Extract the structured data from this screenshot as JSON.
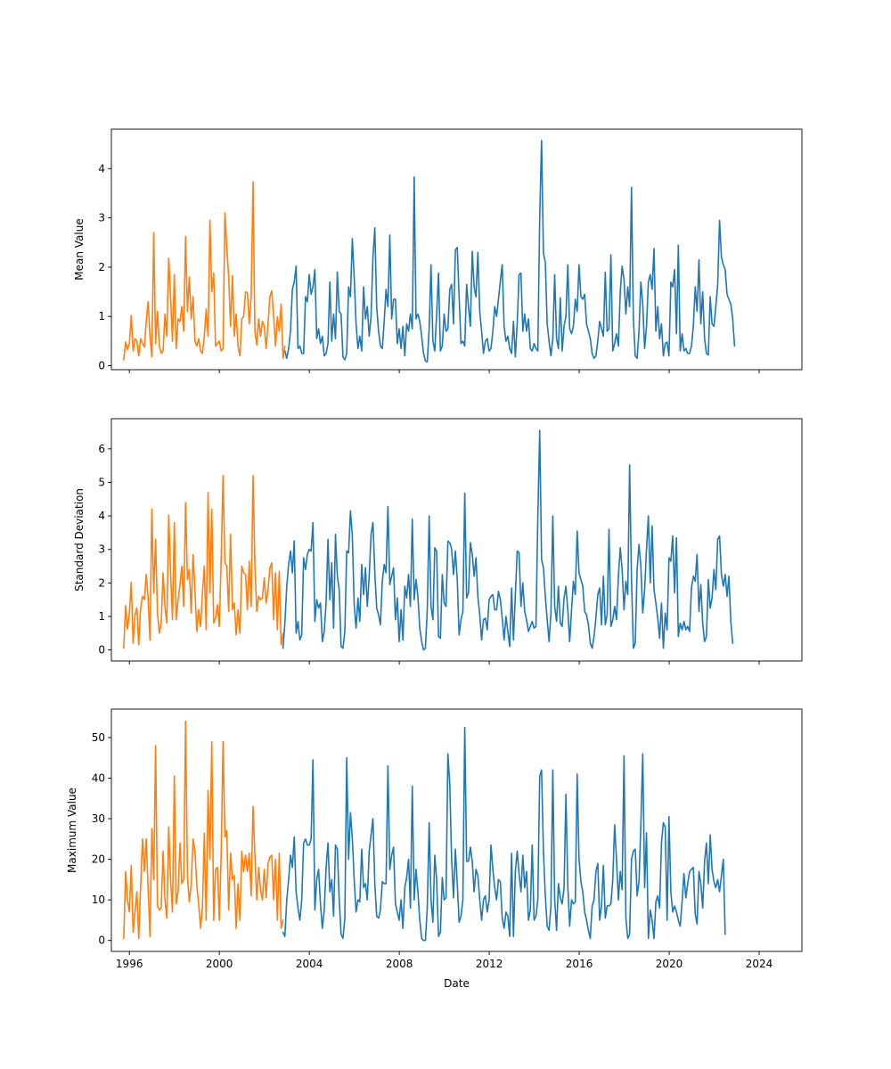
{
  "chart_data": [
    {
      "type": "line",
      "ylabel": "Mean Value",
      "xlim": [
        1995.2,
        2025.9
      ],
      "ylim": [
        -0.08,
        4.8
      ],
      "yticks": [
        0,
        1,
        2,
        3,
        4
      ],
      "grid": false,
      "x_start": 1995.75,
      "x_step": 0.0833,
      "series": [
        {
          "color": "#ff7f0e",
          "values": [
            0.12,
            0.48,
            0.33,
            0.45,
            1.02,
            0.3,
            0.55,
            0.5,
            0.2,
            0.55,
            0.45,
            0.38,
            0.9,
            1.3,
            0.6,
            0.18,
            2.7,
            0.45,
            1.1,
            0.4,
            0.25,
            0.3,
            1.05,
            0.6,
            2.18,
            1.4,
            0.5,
            1.85,
            0.35,
            0.95,
            0.9,
            1.2,
            0.7,
            2.62,
            1.1,
            1.8,
            0.95,
            1.4,
            0.5,
            0.4,
            0.55,
            0.3,
            0.25,
            0.6,
            1.15,
            0.6,
            2.95,
            1.5,
            1.88,
            0.4,
            0.45,
            0.5,
            0.3,
            0.35,
            3.1,
            2.4,
            1.8,
            0.8,
            1.83,
            0.6,
            1.05,
            0.4,
            0.2,
            0.95,
            1.0,
            1.5,
            1.48,
            0.85,
            1.4,
            3.73,
            0.7,
            0.42,
            0.95,
            0.6,
            0.9,
            0.8,
            0.35,
            0.85,
            1.4,
            1.52,
            1.0,
            0.4,
            1.0,
            0.7,
            1.25,
            0.15,
            0.4
          ]
        },
        {
          "color": "#1f77b4",
          "values": [
            0.3,
            0.15,
            0.35,
            0.7,
            1.55,
            1.7,
            2.02,
            0.35,
            0.4,
            0.25,
            0.25,
            1.4,
            1.3,
            1.85,
            1.45,
            1.6,
            1.95,
            0.55,
            0.75,
            0.45,
            0.6,
            0.2,
            0.25,
            0.45,
            1.7,
            0.5,
            1.05,
            0.55,
            1.9,
            1.1,
            1.05,
            0.18,
            0.12,
            0.25,
            1.6,
            1.4,
            2.58,
            1.8,
            0.85,
            0.35,
            0.6,
            0.3,
            1.6,
            0.95,
            1.2,
            0.6,
            1.0,
            2.2,
            2.8,
            1.2,
            0.7,
            0.4,
            0.35,
            0.9,
            1.55,
            1.2,
            2.65,
            0.95,
            1.35,
            1.35,
            0.45,
            0.75,
            0.35,
            0.8,
            0.2,
            0.85,
            0.7,
            1.05,
            0.75,
            3.83,
            0.95,
            1.05,
            0.9,
            0.6,
            0.25,
            0.1,
            0.08,
            0.75,
            2.05,
            0.5,
            0.3,
            1.05,
            1.88,
            0.3,
            0.4,
            1.05,
            0.7,
            0.75,
            1.55,
            1.65,
            0.85,
            2.35,
            2.4,
            1.4,
            0.45,
            0.5,
            0.4,
            1.65,
            1.2,
            0.8,
            2.32,
            1.6,
            1.4,
            2.3,
            1.1,
            0.7,
            0.25,
            0.5,
            0.55,
            0.3,
            0.35,
            0.7,
            1.2,
            1.0,
            1.35,
            1.72,
            2.05,
            0.8,
            0.5,
            0.6,
            0.35,
            0.25,
            0.9,
            0.18,
            0.85,
            1.85,
            1.88,
            0.7,
            1.05,
            0.7,
            0.95,
            0.35,
            0.3,
            0.45,
            0.35,
            0.3,
            3.0,
            4.57,
            2.28,
            2.1,
            0.85,
            0.5,
            0.2,
            0.55,
            1.85,
            0.55,
            0.35,
            1.38,
            0.3,
            0.8,
            1.0,
            2.05,
            0.75,
            0.65,
            0.8,
            1.35,
            1.1,
            2.05,
            1.4,
            1.35,
            1.45,
            0.85,
            0.7,
            0.55,
            0.25,
            0.15,
            0.2,
            0.5,
            0.9,
            0.75,
            0.6,
            1.9,
            0.7,
            0.75,
            2.25,
            0.3,
            0.45,
            0.65,
            0.4,
            1.5,
            2.02,
            1.75,
            1.05,
            1.6,
            1.2,
            3.62,
            0.95,
            0.2,
            0.15,
            0.7,
            1.7,
            1.25,
            0.35,
            0.8,
            1.7,
            1.85,
            1.55,
            2.38,
            0.7,
            1.2,
            0.55,
            0.85,
            0.2,
            0.45,
            0.48,
            0.2,
            1.7,
            1.6,
            1.95,
            0.65,
            2.45,
            0.3,
            0.65,
            0.3,
            0.35,
            0.25,
            0.25,
            0.4,
            0.8,
            1.6,
            1.1,
            2.15,
            0.85,
            1.5,
            0.55,
            0.25,
            0.22,
            1.4,
            0.85,
            0.8,
            1.2,
            1.65,
            2.95,
            2.2,
            2.05,
            1.95,
            1.45,
            1.35,
            1.25,
            0.95,
            0.4
          ]
        }
      ]
    },
    {
      "type": "line",
      "ylabel": "Standard Deviation",
      "xlim": [
        1995.2,
        2025.9
      ],
      "ylim": [
        -0.33,
        6.9
      ],
      "yticks": [
        0,
        1,
        2,
        3,
        4,
        5,
        6
      ],
      "grid": false,
      "x_start": 1995.75,
      "x_step": 0.0833,
      "series": [
        {
          "color": "#ff7f0e",
          "values": [
            0.05,
            1.32,
            0.62,
            1.1,
            2.02,
            0.2,
            1.05,
            1.25,
            0.15,
            1.25,
            1.6,
            1.5,
            2.25,
            1.55,
            0.3,
            4.2,
            1.7,
            3.3,
            1.1,
            0.5,
            0.8,
            2.3,
            1.3,
            0.8,
            4.02,
            2.3,
            0.9,
            3.8,
            0.9,
            1.5,
            1.95,
            2.5,
            1.3,
            4.4,
            2.1,
            2.4,
            1.1,
            2.85,
            1.8,
            0.55,
            1.2,
            0.7,
            1.7,
            2.5,
            0.6,
            4.7,
            1.7,
            4.2,
            0.8,
            0.95,
            1.35,
            0.7,
            2.7,
            5.2,
            2.6,
            2.5,
            1.15,
            3.45,
            1.2,
            1.4,
            0.45,
            1.2,
            0.5,
            2.5,
            2.3,
            2.25,
            1.2,
            2.65,
            1.3,
            5.2,
            2.55,
            1.15,
            1.6,
            1.5,
            1.55,
            2.15,
            1.4,
            1.8,
            2.45,
            2.6,
            0.9,
            2.3,
            0.6,
            2.35,
            0.15,
            0.5
          ]
        },
        {
          "color": "#1f77b4",
          "values": [
            0.05,
            0.8,
            1.9,
            2.55,
            2.95,
            2.3,
            3.25,
            0.5,
            0.85,
            0.3,
            0.45,
            2.75,
            2.4,
            2.85,
            3.0,
            2.95,
            3.8,
            0.85,
            1.5,
            1.25,
            1.4,
            0.25,
            0.55,
            1.4,
            3.3,
            1.5,
            2.6,
            0.65,
            3.45,
            2.2,
            1.8,
            0.1,
            0.05,
            0.55,
            2.95,
            2.9,
            4.15,
            3.4,
            1.35,
            0.65,
            1.55,
            0.85,
            2.55,
            1.65,
            2.45,
            1.3,
            2.2,
            3.45,
            3.8,
            2.3,
            1.25,
            1.05,
            0.75,
            2.05,
            2.55,
            2.3,
            4.28,
            1.95,
            2.2,
            2.45,
            0.9,
            1.55,
            0.25,
            1.2,
            0.3,
            1.9,
            1.55,
            2.25,
            1.3,
            3.9,
            1.5,
            2.1,
            1.6,
            0.65,
            0.25,
            0.0,
            0.05,
            1.2,
            4.0,
            1.3,
            0.9,
            3.05,
            2.95,
            0.4,
            0.35,
            2.25,
            1.4,
            1.3,
            3.25,
            3.2,
            3.0,
            2.25,
            2.95,
            2.1,
            0.45,
            0.9,
            1.15,
            4.68,
            1.55,
            1.7,
            3.2,
            2.85,
            2.2,
            2.75,
            1.6,
            1.05,
            0.3,
            0.9,
            0.95,
            0.6,
            1.5,
            1.6,
            1.65,
            1.2,
            1.2,
            1.75,
            1.5,
            0.95,
            0.3,
            1.0,
            0.55,
            0.1,
            1.85,
            0.3,
            1.65,
            2.95,
            2.9,
            1.3,
            2.0,
            1.15,
            0.9,
            0.55,
            0.7,
            0.85,
            0.65,
            0.7,
            3.95,
            6.55,
            2.7,
            2.45,
            1.6,
            0.9,
            0.25,
            1.1,
            4.0,
            1.3,
            0.85,
            1.9,
            0.8,
            0.7,
            1.55,
            1.9,
            1.2,
            0.25,
            1.2,
            2.05,
            1.65,
            3.55,
            2.3,
            2.1,
            1.9,
            1.15,
            1.05,
            0.75,
            0.2,
            0.05,
            0.4,
            0.95,
            1.65,
            1.85,
            0.75,
            2.2,
            0.75,
            1.05,
            3.6,
            0.7,
            0.9,
            1.3,
            0.9,
            2.2,
            3.05,
            2.4,
            1.2,
            2.05,
            1.65,
            5.52,
            2.1,
            0.05,
            0.2,
            2.4,
            3.15,
            2.5,
            1.1,
            1.8,
            3.0,
            4.0,
            2.0,
            3.7,
            1.8,
            1.4,
            0.95,
            0.35,
            1.4,
            0.05,
            1.1,
            0.6,
            2.75,
            2.65,
            3.4,
            1.7,
            3.35,
            0.4,
            0.8,
            0.6,
            0.85,
            0.6,
            0.7,
            0.55,
            1.85,
            2.2,
            2.05,
            2.85,
            1.15,
            1.95,
            0.8,
            0.25,
            0.4,
            2.1,
            1.25,
            1.55,
            2.4,
            1.8,
            3.3,
            3.4,
            2.25,
            1.9,
            2.25,
            1.6,
            2.2,
            0.85,
            0.2
          ]
        }
      ]
    },
    {
      "type": "line",
      "xlabel": "Date",
      "ylabel": "Maximum Value",
      "xlim": [
        1995.2,
        2025.9
      ],
      "ylim": [
        -2.7,
        57.0
      ],
      "yticks": [
        0,
        10,
        20,
        30,
        40,
        50
      ],
      "xticks": [
        1996,
        2000,
        2004,
        2008,
        2012,
        2016,
        2020,
        2024
      ],
      "grid": false,
      "x_start": 1995.75,
      "x_step": 0.0833,
      "series": [
        {
          "color": "#ff7f0e",
          "values": [
            0.5,
            17.0,
            10.0,
            7.0,
            18.5,
            2.0,
            7.0,
            12.0,
            0.5,
            13.0,
            25.0,
            17.0,
            25.0,
            13.0,
            1.0,
            27.5,
            15.0,
            48.0,
            8.5,
            7.5,
            8.0,
            22.0,
            10.0,
            5.5,
            28.0,
            15.0,
            7.0,
            40.5,
            9.0,
            12.0,
            24.0,
            14.0,
            15.0,
            54.0,
            16.0,
            9.5,
            14.0,
            25.0,
            22.0,
            13.5,
            9.0,
            3.0,
            8.0,
            26.5,
            5.0,
            37.0,
            20.0,
            49.0,
            5.0,
            17.5,
            18.0,
            5.0,
            21.0,
            49.0,
            25.5,
            27.0,
            7.5,
            21.5,
            15.0,
            16.0,
            3.0,
            14.0,
            5.0,
            22.0,
            17.0,
            21.0,
            17.0,
            21.5,
            11.0,
            33.0,
            21.0,
            10.0,
            18.0,
            12.5,
            10.0,
            17.5,
            10.5,
            19.0,
            20.5,
            21.0,
            10.0,
            20.0,
            5.0,
            21.5,
            3.0,
            5.0
          ]
        },
        {
          "color": "#1f77b4",
          "values": [
            2.0,
            1.0,
            10.0,
            15.0,
            21.0,
            18.0,
            25.5,
            12.0,
            8.0,
            5.0,
            10.0,
            24.0,
            25.0,
            23.5,
            23.5,
            25.0,
            44.5,
            7.5,
            15.0,
            17.5,
            9.0,
            3.0,
            7.5,
            18.0,
            24.0,
            12.0,
            15.0,
            6.0,
            23.5,
            22.5,
            10.0,
            1.5,
            0.5,
            5.5,
            45.0,
            20.0,
            31.5,
            25.0,
            15.0,
            7.0,
            10.0,
            9.5,
            22.5,
            13.0,
            14.0,
            10.0,
            22.0,
            26.0,
            30.0,
            14.0,
            6.0,
            5.5,
            7.5,
            14.5,
            14.0,
            14.0,
            43.0,
            17.5,
            21.0,
            23.0,
            9.0,
            7.0,
            5.0,
            10.0,
            3.0,
            13.0,
            15.5,
            20.0,
            8.0,
            38.0,
            10.0,
            17.5,
            12.0,
            5.0,
            0.5,
            0.0,
            0.0,
            8.0,
            29.0,
            10.0,
            4.5,
            21.0,
            15.0,
            1.0,
            2.0,
            15.5,
            10.0,
            10.5,
            46.0,
            38.5,
            20.0,
            10.5,
            22.5,
            14.0,
            4.5,
            6.0,
            10.0,
            52.5,
            19.5,
            19.5,
            23.0,
            19.5,
            12.0,
            17.5,
            16.0,
            10.0,
            5.0,
            10.0,
            11.0,
            7.0,
            10.0,
            23.5,
            17.5,
            13.0,
            10.0,
            15.0,
            14.5,
            5.5,
            3.0,
            7.0,
            6.0,
            1.0,
            21.5,
            1.0,
            17.0,
            22.0,
            16.5,
            12.0,
            21.0,
            13.0,
            17.0,
            5.0,
            7.5,
            23.5,
            5.0,
            6.0,
            10.0,
            40.5,
            42.0,
            22.0,
            11.0,
            3.5,
            2.5,
            8.5,
            42.0,
            10.0,
            2.5,
            14.0,
            10.5,
            9.0,
            13.0,
            36.0,
            13.5,
            3.5,
            10.0,
            9.0,
            9.5,
            41.0,
            20.0,
            14.5,
            12.0,
            7.0,
            5.0,
            2.5,
            0.5,
            8.5,
            10.0,
            17.0,
            19.0,
            5.0,
            8.5,
            18.5,
            5.5,
            8.5,
            8.5,
            9.0,
            15.0,
            28.5,
            20.0,
            10.0,
            17.0,
            12.5,
            45.5,
            5.5,
            0.5,
            1.5,
            20.0,
            22.0,
            22.5,
            11.0,
            14.5,
            28.5,
            46.0,
            13.0,
            26.5,
            0.5,
            7.5,
            5.0,
            0.5,
            9.5,
            11.0,
            8.0,
            24.0,
            29.0,
            28.0,
            5.0,
            30.5,
            12.0,
            7.0,
            8.5,
            7.0,
            5.0,
            3.5,
            9.5,
            16.5,
            10.5,
            14.0,
            17.0,
            17.5,
            18.0,
            6.5,
            4.0,
            17.0,
            14.0,
            8.0,
            19.5,
            24.0,
            14.0,
            26.0,
            17.5,
            14.5,
            13.0,
            15.0,
            12.0,
            16.0,
            20.0,
            1.5
          ]
        }
      ]
    }
  ]
}
